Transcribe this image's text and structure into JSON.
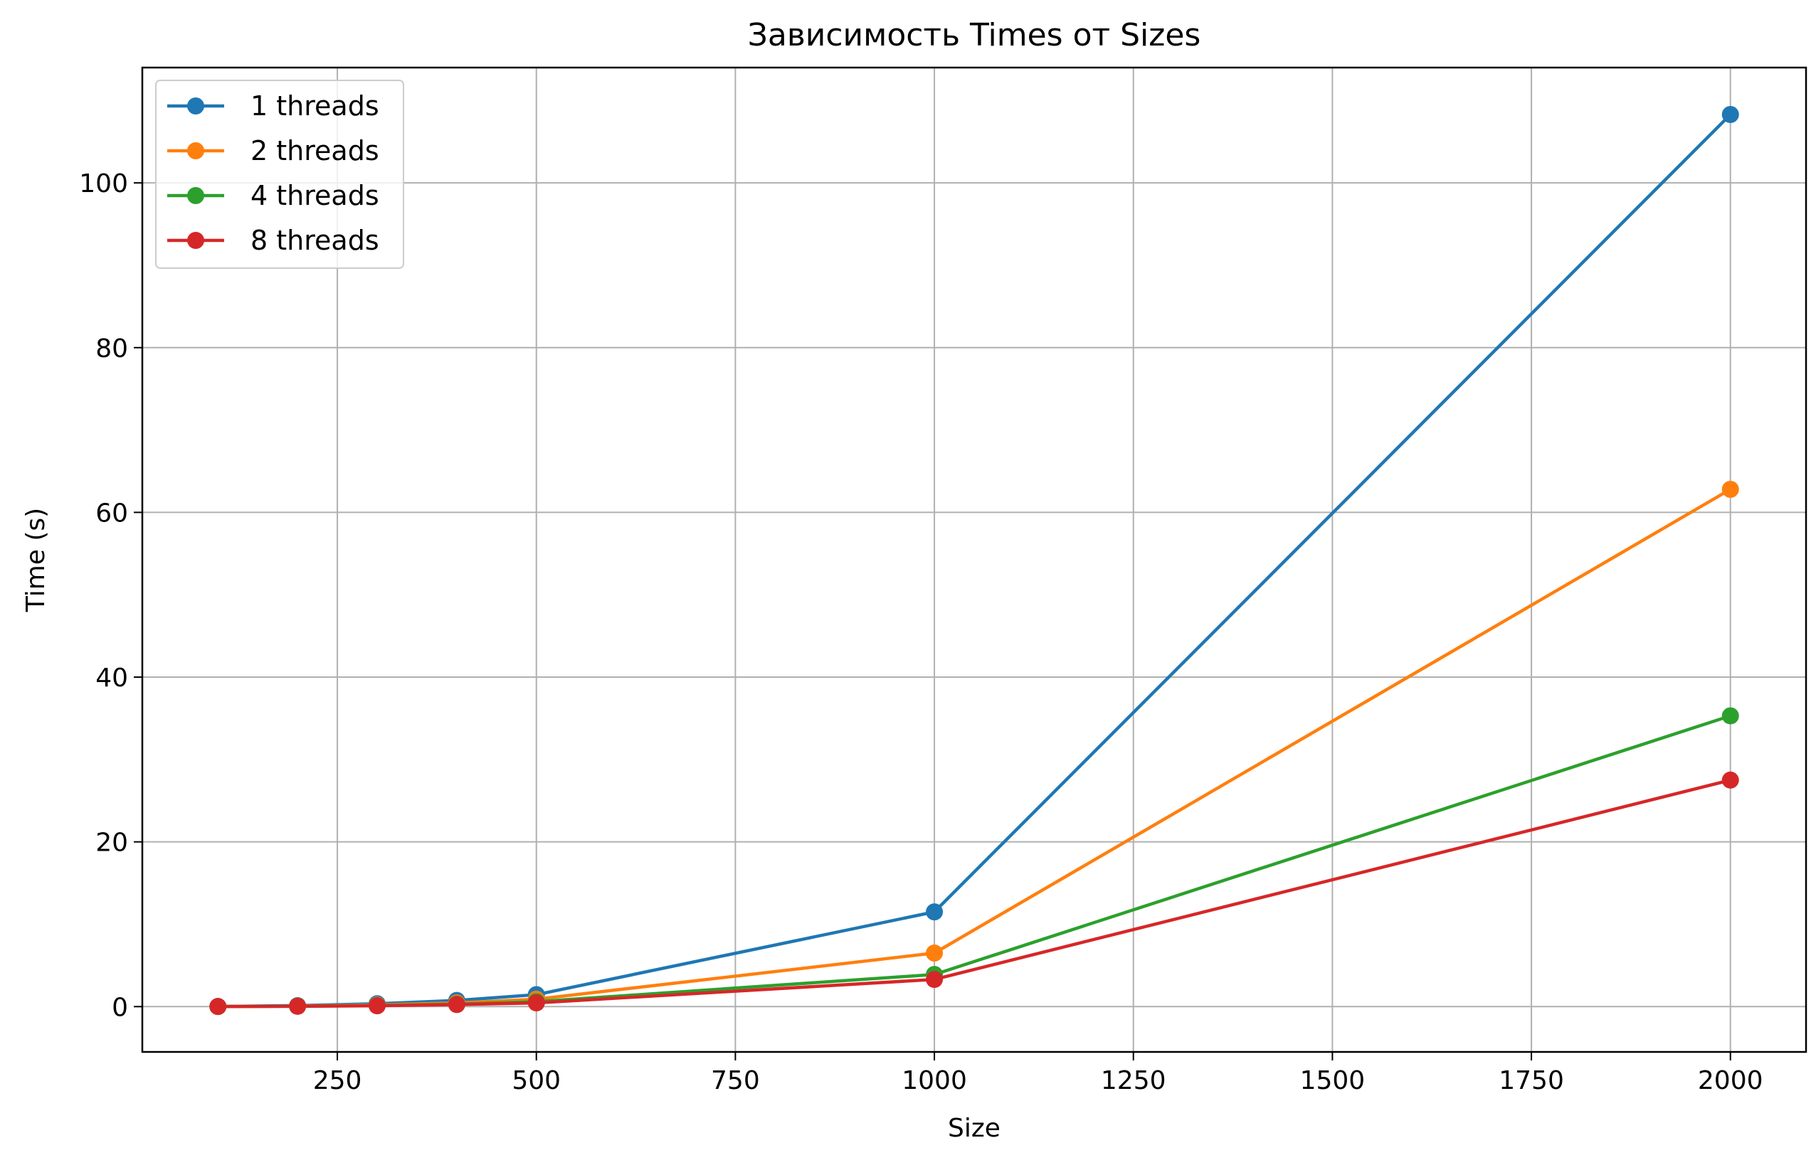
{
  "chart_data": {
    "type": "line",
    "title": "Зависимость Times от Sizes",
    "xlabel": "Size",
    "ylabel": "Time (s)",
    "x": [
      100,
      200,
      300,
      400,
      500,
      1000,
      2000
    ],
    "xlim": [
      5,
      2095
    ],
    "ylim": [
      -5.5,
      114
    ],
    "xticks": [
      250,
      500,
      750,
      1000,
      1250,
      1500,
      1750,
      2000
    ],
    "yticks": [
      0,
      20,
      40,
      60,
      80,
      100
    ],
    "grid": true,
    "legend_position": "top-left",
    "series": [
      {
        "name": "1 threads",
        "color": "#1f77b4",
        "values": [
          0.02,
          0.12,
          0.35,
          0.75,
          1.45,
          11.5,
          108.3
        ]
      },
      {
        "name": "2 threads",
        "color": "#ff7f0e",
        "values": [
          0.01,
          0.07,
          0.2,
          0.45,
          0.9,
          6.5,
          62.8
        ]
      },
      {
        "name": "4 threads",
        "color": "#2ca02c",
        "values": [
          0.01,
          0.05,
          0.13,
          0.3,
          0.6,
          3.9,
          35.3
        ]
      },
      {
        "name": "8 threads",
        "color": "#d62728",
        "values": [
          0.01,
          0.04,
          0.1,
          0.25,
          0.45,
          3.3,
          27.5
        ]
      }
    ]
  }
}
